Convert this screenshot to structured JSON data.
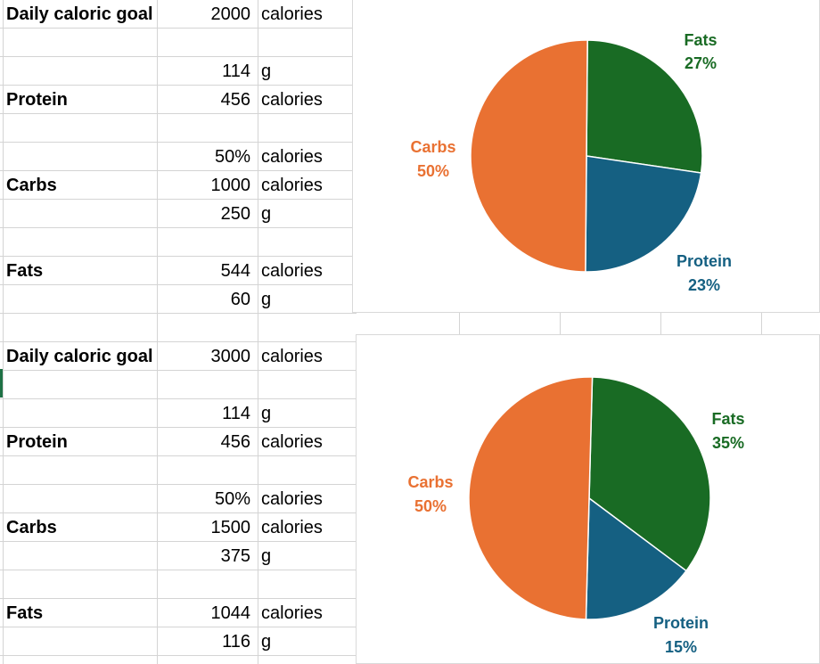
{
  "colors": {
    "carbs": "#E97132",
    "fats": "#196B24",
    "protein": "#156082",
    "grid": "#d4d4d4"
  },
  "blocks": [
    {
      "goal_label": "Daily caloric goal",
      "goal_value": "2000",
      "goal_unit": "calories",
      "protein_label": "Protein",
      "protein_g": "114",
      "protein_g_unit": "g",
      "protein_cal": "456",
      "protein_cal_unit": "calories",
      "carbs_pct": "50%",
      "carbs_pct_unit": "calories",
      "carbs_label": "Carbs",
      "carbs_cal": "1000",
      "carbs_cal_unit": "calories",
      "carbs_g": "250",
      "carbs_g_unit": "g",
      "fats_label": "Fats",
      "fats_cal": "544",
      "fats_cal_unit": "calories",
      "fats_g": "60",
      "fats_g_unit": "g"
    },
    {
      "goal_label": "Daily caloric goal",
      "goal_value": "3000",
      "goal_unit": "calories",
      "protein_label": "Protein",
      "protein_g": "114",
      "protein_g_unit": "g",
      "protein_cal": "456",
      "protein_cal_unit": "calories",
      "carbs_pct": "50%",
      "carbs_pct_unit": "calories",
      "carbs_label": "Carbs",
      "carbs_cal": "1500",
      "carbs_cal_unit": "calories",
      "carbs_g": "375",
      "carbs_g_unit": "g",
      "fats_label": "Fats",
      "fats_cal": "1044",
      "fats_cal_unit": "calories",
      "fats_g": "116",
      "fats_g_unit": "g"
    }
  ],
  "chart_data": [
    {
      "type": "pie",
      "categories": [
        "Fats",
        "Protein",
        "Carbs"
      ],
      "values": [
        544,
        456,
        1000
      ],
      "data_labels": [
        "27%",
        "23%",
        "50%"
      ],
      "colors": [
        "#196B24",
        "#156082",
        "#E97132"
      ]
    },
    {
      "type": "pie",
      "categories": [
        "Fats",
        "Protein",
        "Carbs"
      ],
      "values": [
        1044,
        456,
        1500
      ],
      "data_labels": [
        "35%",
        "15%",
        "50%"
      ],
      "colors": [
        "#196B24",
        "#156082",
        "#E97132"
      ]
    }
  ]
}
